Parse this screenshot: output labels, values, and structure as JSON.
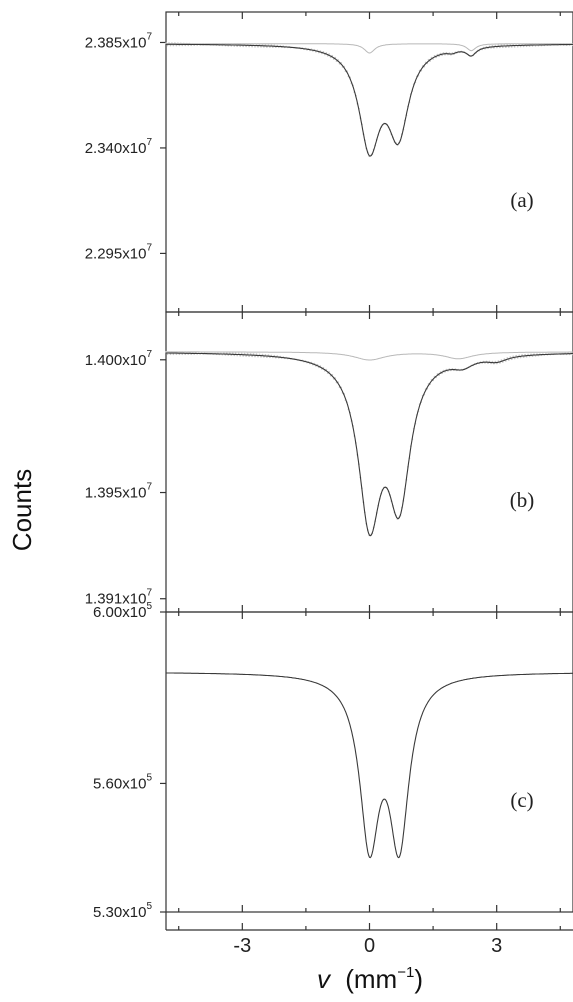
{
  "chart_data": {
    "type": "line",
    "ylabel": "Counts",
    "xlabel": {
      "italic_symbol": "v",
      "units": "(mm",
      "units_exp": "−1",
      "units_close": ")"
    },
    "xlim": [
      -4.8,
      4.8
    ],
    "x_ticks": [
      -3,
      0,
      3
    ],
    "x_tick_labels": [
      "-3",
      "0",
      "3"
    ],
    "panels": [
      {
        "tag": "(a)",
        "ylim": [
          22700000.0,
          23980000.0
        ],
        "y_ticks": [
          23850000.0,
          23400000.0,
          22950000.0
        ],
        "y_tick_labels": [
          {
            "mant": "2.385x10",
            "exp": "7"
          },
          {
            "mant": "2.340x10",
            "exp": "7"
          },
          {
            "mant": "2.295x10",
            "exp": "7"
          }
        ],
        "baseline": 23845000.0,
        "fit_components": [
          {
            "center": 0.0,
            "depth": 420000,
            "width": 0.3
          },
          {
            "center": 0.68,
            "depth": 360000,
            "width": 0.3
          },
          {
            "center": 2.4,
            "depth": 35000,
            "width": 0.14
          },
          {
            "center": 1.95,
            "depth": 12000,
            "width": 0.14
          }
        ],
        "sub_spectrum": [
          {
            "center": 0.0,
            "depth": 40000,
            "width": 0.15
          },
          {
            "center": 2.4,
            "depth": 30000,
            "width": 0.13
          }
        ]
      },
      {
        "tag": "(b)",
        "ylim": [
          13905000.0,
          14018000.0
        ],
        "y_ticks": [
          14000000.0,
          13950000.0,
          13910000.0
        ],
        "y_tick_labels": [
          {
            "mant": "1.400x10",
            "exp": "7"
          },
          {
            "mant": "1.395x10",
            "exp": "7"
          },
          {
            "mant": "1.391x10",
            "exp": "7"
          }
        ],
        "baseline": 14003000.0,
        "fit_components": [
          {
            "center": 0.0,
            "depth": 60000,
            "width": 0.32
          },
          {
            "center": 0.7,
            "depth": 52000,
            "width": 0.32
          },
          {
            "center": 2.2,
            "depth": 3000,
            "width": 0.3
          },
          {
            "center": 3.0,
            "depth": 2000,
            "width": 0.3
          }
        ],
        "sub_spectrum": [
          {
            "center": 0.0,
            "depth": 3000,
            "width": 0.45
          },
          {
            "center": 2.1,
            "depth": 2500,
            "width": 0.4
          }
        ]
      },
      {
        "tag": "(c)",
        "ylim": [
          530000.0,
          600000.0
        ],
        "y_ticks": [
          600000.0,
          560000.0,
          530000.0
        ],
        "y_tick_labels": [
          {
            "mant": "6.00x10",
            "exp": "5"
          },
          {
            "mant": "5.60x10",
            "exp": "5"
          },
          {
            "mant": "5.30x10",
            "exp": "5"
          }
        ],
        "baseline": 586000.0,
        "fit_components": [
          {
            "center": 0.0,
            "depth": 38000,
            "width": 0.28
          },
          {
            "center": 0.7,
            "depth": 38000,
            "width": 0.28
          }
        ],
        "sub_spectrum": []
      }
    ]
  }
}
